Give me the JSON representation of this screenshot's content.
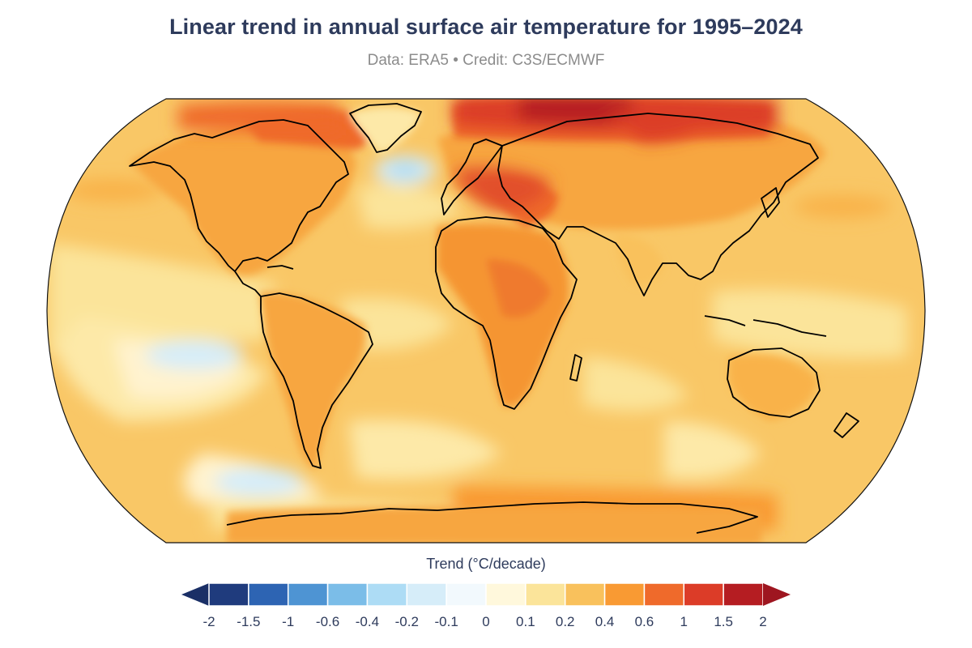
{
  "header": {
    "title": "Linear trend in annual surface air temperature for 1995–2024",
    "subtitle": "Data: ERA5 • Credit: C3S/ECMWF"
  },
  "colorbar": {
    "title": "Trend (°C/decade)",
    "tick_labels": [
      "-2",
      "-1.5",
      "-1",
      "-0.6",
      "-0.4",
      "-0.2",
      "-0.1",
      "0",
      "0.1",
      "0.2",
      "0.4",
      "0.6",
      "1",
      "1.5",
      "2"
    ],
    "bins": [
      {
        "color": "#1f3b7d"
      },
      {
        "color": "#2d64b3"
      },
      {
        "color": "#4e94d3"
      },
      {
        "color": "#7bbde8"
      },
      {
        "color": "#addcf5"
      },
      {
        "color": "#d6edf9"
      },
      {
        "color": "#f2f9fd"
      },
      {
        "color": "#fff8dc"
      },
      {
        "color": "#fbe49a"
      },
      {
        "color": "#f9c15c"
      },
      {
        "color": "#f99a33"
      },
      {
        "color": "#ef6a2b"
      },
      {
        "color": "#dc3c28"
      },
      {
        "color": "#b51d22"
      }
    ],
    "under_color": "#1a2f66",
    "over_color": "#9e1620"
  },
  "map": {
    "projection": "robinson",
    "background_color": "#f9c15c",
    "coastline_color": "#000000"
  }
}
